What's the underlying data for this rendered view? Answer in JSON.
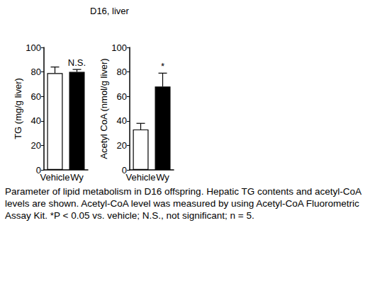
{
  "title": "D16, liver",
  "caption": "Parameter of lipid metabolism in D16 offspring. Hepatic TG contents and acetyl-CoA levels are shown. Acetyl-CoA level was measured by using Acetyl-CoA Fluorometric Assay Kit. *P < 0.05 vs. vehicle; N.S., not significant; n = 5.",
  "chart_data": [
    {
      "type": "bar",
      "y_label": "TG (mg/g liver)",
      "categories": [
        "Vehicle",
        "Wy"
      ],
      "values": [
        79,
        80
      ],
      "errors": [
        5,
        2
      ],
      "colors": [
        "#ffffff",
        "#000000"
      ],
      "annotations": [
        {
          "category": "Wy",
          "text": "N.S."
        }
      ],
      "ylim": [
        0,
        100
      ],
      "yticks": [
        0,
        20,
        40,
        60,
        80,
        100
      ],
      "grid": false
    },
    {
      "type": "bar",
      "y_label": "Acetyl CoA (nmol/g liver)",
      "categories": [
        "Vehicle",
        "Wy"
      ],
      "values": [
        33,
        68
      ],
      "errors": [
        5,
        11
      ],
      "colors": [
        "#ffffff",
        "#000000"
      ],
      "annotations": [
        {
          "category": "Wy",
          "text": "*"
        }
      ],
      "ylim": [
        0,
        100
      ],
      "yticks": [
        0,
        20,
        40,
        60,
        80,
        100
      ],
      "grid": false
    }
  ]
}
